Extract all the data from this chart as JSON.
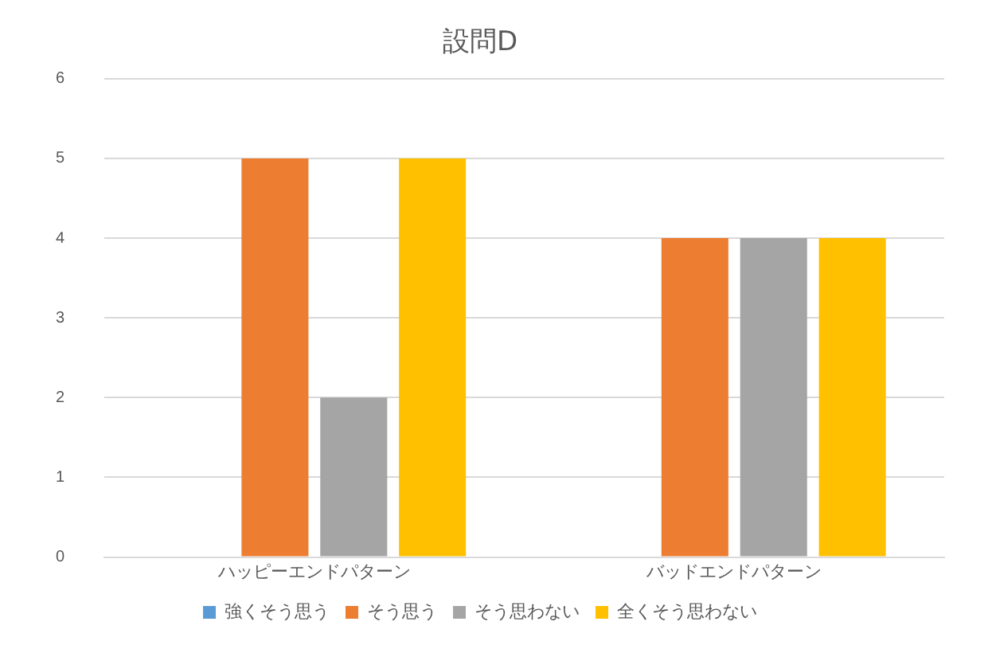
{
  "chart_data": {
    "type": "bar",
    "title": "設問D",
    "categories": [
      "ハッピーエンドパターン",
      "バッドエンドパターン"
    ],
    "series": [
      {
        "name": "強くそう思う",
        "color": "#5b9bd5",
        "values": [
          0,
          0
        ]
      },
      {
        "name": "そう思う",
        "color": "#ed7d31",
        "values": [
          5,
          4
        ]
      },
      {
        "name": "そう思わない",
        "color": "#a5a5a5",
        "values": [
          2,
          4
        ]
      },
      {
        "name": "全くそう思わない",
        "color": "#ffc000",
        "values": [
          5,
          4
        ]
      }
    ],
    "ylim": [
      0,
      6
    ],
    "yticks": [
      0,
      1,
      2,
      3,
      4,
      5,
      6
    ],
    "grid": "y",
    "legend": "bottom"
  }
}
